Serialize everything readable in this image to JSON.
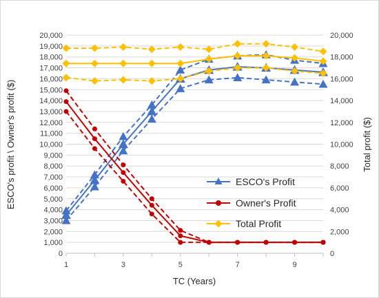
{
  "chart_data": {
    "type": "line",
    "x": [
      1,
      2,
      3,
      4,
      5,
      6,
      7,
      8,
      9,
      10
    ],
    "xlabel": "TC (Years)",
    "x_ticks": [
      "1",
      "3",
      "5",
      "7",
      "9"
    ],
    "xlim": [
      1,
      10
    ],
    "ylabel_left": "ESCO's profit \\ Owner's profit ($)",
    "ylabel_right": "Total profit ($)",
    "ylim_left": [
      0,
      20000
    ],
    "ylim_right": [
      0,
      20000
    ],
    "y_ticks_left": [
      "0",
      "1,000",
      "2,000",
      "3,000",
      "4,000",
      "5,000",
      "6,000",
      "7,000",
      "8,000",
      "9,000",
      "10,000",
      "11,000",
      "12,000",
      "13,000",
      "14,000",
      "15,000",
      "16,000",
      "17,000",
      "18,000",
      "19,000",
      "20,000"
    ],
    "y_ticks_right": [
      "0",
      "2,000",
      "4,000",
      "6,000",
      "8,000",
      "10,000",
      "12,000",
      "14,000",
      "16,000",
      "18,000",
      "20,000"
    ],
    "grid": true,
    "legend_position": "center-right",
    "series": [
      {
        "name": "ESCO's Profit",
        "axis": "left",
        "color": "#4472c4",
        "marker": "triangle",
        "band": "mean",
        "values": [
          3500,
          6700,
          10000,
          13000,
          16000,
          16800,
          17100,
          17000,
          16800,
          16600
        ]
      },
      {
        "name": "",
        "axis": "left",
        "color": "#4472c4",
        "marker": "triangle",
        "band": "upper",
        "values": [
          3900,
          7200,
          10700,
          13600,
          16800,
          17800,
          18100,
          18200,
          17700,
          17400
        ]
      },
      {
        "name": "",
        "axis": "left",
        "color": "#4472c4",
        "marker": "triangle",
        "band": "lower",
        "values": [
          3000,
          6100,
          9400,
          12300,
          15100,
          15900,
          16100,
          15900,
          15700,
          15500
        ]
      },
      {
        "name": "Owner's Profit",
        "axis": "left",
        "color": "#c00000",
        "marker": "circle",
        "band": "mean",
        "values": [
          13900,
          10500,
          7400,
          4400,
          1600,
          1000,
          1000,
          1000,
          1000,
          1000
        ]
      },
      {
        "name": "",
        "axis": "left",
        "color": "#c00000",
        "marker": "circle",
        "band": "upper",
        "values": [
          14900,
          11400,
          8100,
          5000,
          2100,
          1000,
          1000,
          1000,
          1000,
          1000
        ]
      },
      {
        "name": "",
        "axis": "left",
        "color": "#c00000",
        "marker": "circle",
        "band": "lower",
        "values": [
          13000,
          9600,
          6600,
          3600,
          1000,
          1000,
          1000,
          1000,
          1000,
          1000
        ]
      },
      {
        "name": "Total Profit",
        "axis": "right",
        "color": "#ffc000",
        "marker": "diamond",
        "band": "mean",
        "values": [
          17400,
          17400,
          17400,
          17400,
          17400,
          17800,
          18100,
          18100,
          17900,
          17600
        ]
      },
      {
        "name": "",
        "axis": "right",
        "color": "#ffc000",
        "marker": "diamond",
        "band": "upper",
        "values": [
          18800,
          18800,
          18900,
          18700,
          18900,
          18700,
          19200,
          19200,
          18900,
          18500
        ]
      },
      {
        "name": "",
        "axis": "right",
        "color": "#ffc000",
        "marker": "diamond",
        "band": "lower",
        "values": [
          16100,
          15800,
          15900,
          15800,
          16000,
          16700,
          17000,
          17000,
          16700,
          16500
        ]
      }
    ],
    "legend": [
      {
        "label": "ESCO's Profit",
        "color": "#4472c4",
        "marker": "triangle"
      },
      {
        "label": "Owner's Profit",
        "color": "#c00000",
        "marker": "circle"
      },
      {
        "label": "Total Profit",
        "color": "#ffc000",
        "marker": "diamond"
      }
    ]
  }
}
